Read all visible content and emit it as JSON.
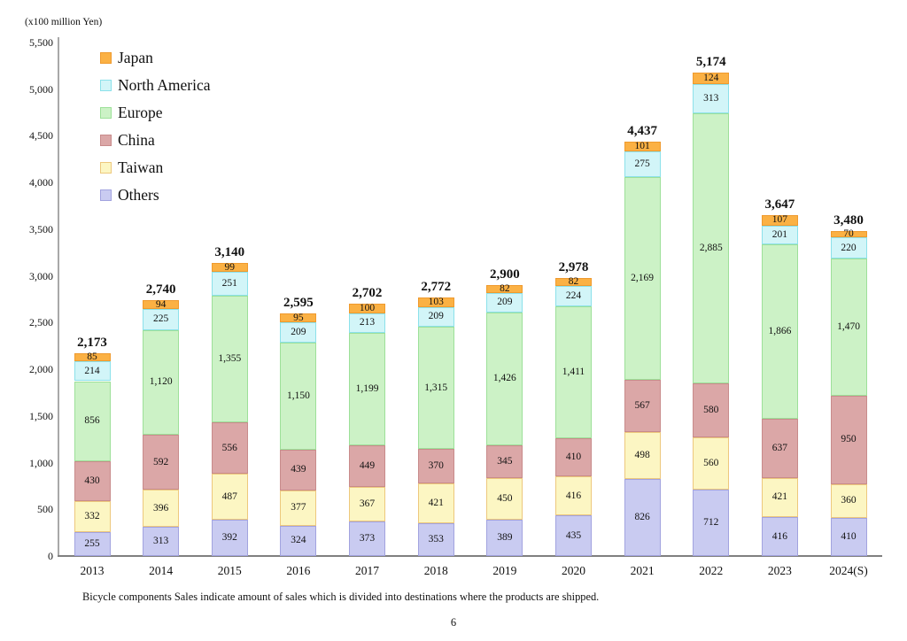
{
  "unit_label": "(x100 million Yen)",
  "footnote": "Bicycle components Sales indicate amount of sales which is divided into destinations where the products are shipped.",
  "page_number": "6",
  "chart_data": {
    "type": "bar",
    "stacked": true,
    "title": "",
    "ylabel": "(x100 million Yen)",
    "xlabel": "",
    "grid": false,
    "legend_position": "top-left",
    "y_axis": {
      "min": 0,
      "max": 5500,
      "step": 500
    },
    "categories": [
      "2013",
      "2014",
      "2015",
      "2016",
      "2017",
      "2018",
      "2019",
      "2020",
      "2021",
      "2022",
      "2023",
      "2024(S)"
    ],
    "series": [
      {
        "name": "Japan",
        "fill": "#fbb144",
        "border": "#ef9a2e",
        "values": [
          85,
          94,
          99,
          95,
          100,
          103,
          82,
          82,
          101,
          124,
          107,
          70
        ]
      },
      {
        "name": "North America",
        "fill": "#d2f5f8",
        "border": "#8ce1ea",
        "values": [
          214,
          225,
          251,
          209,
          213,
          209,
          209,
          224,
          275,
          313,
          201,
          220
        ]
      },
      {
        "name": "Europe",
        "fill": "#ccf2c6",
        "border": "#9de099",
        "values": [
          856,
          1120,
          1355,
          1150,
          1199,
          1315,
          1426,
          1411,
          2169,
          2885,
          1866,
          1470
        ]
      },
      {
        "name": "China",
        "fill": "#dba7a7",
        "border": "#c88b8b",
        "values": [
          430,
          592,
          556,
          439,
          449,
          370,
          345,
          410,
          567,
          580,
          637,
          950
        ]
      },
      {
        "name": "Taiwan",
        "fill": "#fcf6c3",
        "border": "#edc87d",
        "values": [
          332,
          396,
          487,
          377,
          367,
          421,
          450,
          416,
          498,
          560,
          421,
          360
        ]
      },
      {
        "name": "Others",
        "fill": "#c9cbf1",
        "border": "#a2a3df",
        "values": [
          255,
          313,
          392,
          324,
          373,
          353,
          389,
          435,
          826,
          712,
          416,
          410
        ]
      }
    ],
    "stack_order_bottom_to_top": [
      "Others",
      "Taiwan",
      "China",
      "Europe",
      "North America",
      "Japan"
    ],
    "totals": [
      2173,
      2740,
      3140,
      2595,
      2702,
      2772,
      2900,
      2978,
      4437,
      5174,
      3647,
      3480
    ]
  }
}
